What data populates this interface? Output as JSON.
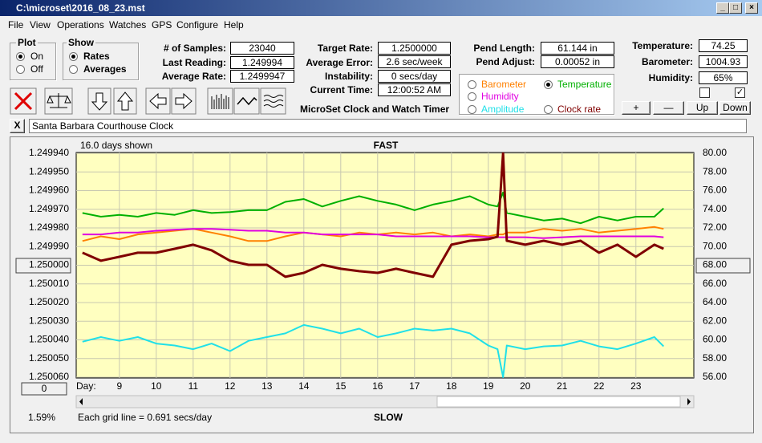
{
  "window": {
    "title": "C:\\microset\\2016_08_23.mst"
  },
  "menu": [
    "File",
    "View",
    "Operations",
    "Watches",
    "GPS",
    "Configure",
    "Help"
  ],
  "plot_group": {
    "title": "Plot",
    "options": [
      "On",
      "Off"
    ]
  },
  "show_group": {
    "title": "Show",
    "options": [
      "Rates",
      "Averages"
    ]
  },
  "fields_left": [
    {
      "label": "# of Samples:",
      "value": "23040"
    },
    {
      "label": "Last Reading:",
      "value": "1.249994"
    },
    {
      "label": "Average Rate:",
      "value": "1.2499947"
    }
  ],
  "fields_mid": [
    {
      "label": "Target Rate:",
      "value": "1.2500000"
    },
    {
      "label": "Average Error:",
      "value": "2.6 sec/week"
    },
    {
      "label": "Instability:",
      "value": "0 secs/day"
    },
    {
      "label": "Current Time:",
      "value": "12:00:52 AM"
    }
  ],
  "fields_pend": [
    {
      "label": "Pend Length:",
      "value": "61.144 in"
    },
    {
      "label": "Pend Adjust:",
      "value": "0.00052 in"
    }
  ],
  "fields_env": [
    {
      "label": "Temperature:",
      "value": "74.25"
    },
    {
      "label": "Barometer:",
      "value": "1004.93"
    },
    {
      "label": "Humidity:",
      "value": "65%"
    }
  ],
  "app_title": "MicroSet Clock and Watch Timer",
  "buttons": [
    "+",
    "—",
    "Up",
    "Down"
  ],
  "close_label": "X",
  "clock_name": "Santa Barbara Courthouse Clock",
  "chart_data": {
    "type": "line",
    "days_shown": "16.0 days shown",
    "top_label": "FAST",
    "bottom_label": "SLOW",
    "x_label": "Day:",
    "footer": "Each grid line = 0.691 secs/day",
    "offset_button": "0",
    "percent": "1.59%",
    "grid": true,
    "xlim": [
      7.83,
      24.57
    ],
    "xticks": [
      9,
      10,
      11,
      12,
      13,
      14,
      15,
      16,
      17,
      18,
      19,
      20,
      21,
      22,
      23
    ],
    "ylim": [
      1.25006,
      1.24994
    ],
    "yticks": [
      {
        "value": 1.24994,
        "label": "1.249940"
      },
      {
        "value": 1.24995,
        "label": "1.249950"
      },
      {
        "value": 1.24996,
        "label": "1.249960"
      },
      {
        "value": 1.24997,
        "label": "1.249970"
      },
      {
        "value": 1.24998,
        "label": "1.249980"
      },
      {
        "value": 1.24999,
        "label": "1.249990"
      },
      {
        "value": 1.25,
        "label": "1.250000"
      },
      {
        "value": 1.25001,
        "label": "1.250010"
      },
      {
        "value": 1.25002,
        "label": "1.250020"
      },
      {
        "value": 1.25003,
        "label": "1.250030"
      },
      {
        "value": 1.25004,
        "label": "1.250040"
      },
      {
        "value": 1.25005,
        "label": "1.250050"
      },
      {
        "value": 1.25006,
        "label": "1.250060"
      }
    ],
    "y2lim": [
      56,
      80
    ],
    "y2ticks": [
      {
        "value": 80,
        "label": "80.00"
      },
      {
        "value": 78,
        "label": "78.00"
      },
      {
        "value": 76,
        "label": "76.00"
      },
      {
        "value": 74,
        "label": "74.00"
      },
      {
        "value": 72,
        "label": "72.00"
      },
      {
        "value": 70,
        "label": "70.00"
      },
      {
        "value": 68,
        "label": "68.00"
      },
      {
        "value": 66,
        "label": "66.00"
      },
      {
        "value": 64,
        "label": "64.00"
      },
      {
        "value": 62,
        "label": "62.00"
      },
      {
        "value": 60,
        "label": "60.00"
      },
      {
        "value": 58,
        "label": "58.00"
      },
      {
        "value": 56,
        "label": "56.00"
      }
    ],
    "x": [
      8,
      8.5,
      9,
      9.5,
      10,
      10.5,
      11,
      11.5,
      12,
      12.5,
      13,
      13.5,
      14,
      14.5,
      15,
      15.5,
      16,
      16.5,
      17,
      17.5,
      18,
      18.5,
      19,
      19.25,
      19.4,
      19.5,
      20,
      20.5,
      21,
      21.5,
      22,
      22.5,
      23,
      23.5,
      23.75
    ],
    "series": [
      {
        "name": "Barometer",
        "color": "#ff8000",
        "axis": "y2",
        "values": [
          70.6,
          71.1,
          70.8,
          71.3,
          71.5,
          71.7,
          71.9,
          71.5,
          71.1,
          70.6,
          70.6,
          71.1,
          71.5,
          71.3,
          71.1,
          71.5,
          71.3,
          71.5,
          71.3,
          71.5,
          71.1,
          71.3,
          71.1,
          71.3,
          71.3,
          71.5,
          71.5,
          71.9,
          71.7,
          71.9,
          71.5,
          71.7,
          71.9,
          72.1,
          71.9
        ]
      },
      {
        "name": "Temperature",
        "color": "#00b000",
        "axis": "y2",
        "values": [
          73.6,
          73.2,
          73.4,
          73.2,
          73.6,
          73.4,
          73.9,
          73.6,
          73.7,
          73.9,
          73.9,
          74.8,
          75.1,
          74.3,
          74.9,
          75.4,
          74.9,
          74.5,
          73.9,
          74.5,
          74.9,
          75.4,
          74.5,
          74.3,
          75.8,
          73.6,
          73.2,
          72.8,
          73.0,
          72.5,
          73.2,
          72.8,
          73.2,
          73.2,
          74.1
        ]
      },
      {
        "name": "Humidity",
        "color": "#e000e0",
        "axis": "y2",
        "values": [
          71.3,
          71.3,
          71.5,
          71.5,
          71.7,
          71.8,
          71.9,
          71.9,
          71.8,
          71.7,
          71.7,
          71.5,
          71.5,
          71.3,
          71.3,
          71.3,
          71.3,
          71.1,
          71.1,
          71.1,
          71.1,
          71.1,
          71.0,
          71.0,
          71.0,
          71.0,
          71.0,
          70.9,
          71.0,
          71.1,
          71.1,
          71.1,
          71.1,
          71.1,
          71.0
        ]
      },
      {
        "name": "Amplitude",
        "color": "#20e0e8",
        "axis": "y2",
        "values": [
          59.8,
          60.3,
          59.9,
          60.3,
          59.6,
          59.4,
          59.0,
          59.6,
          58.8,
          59.9,
          60.3,
          60.7,
          61.6,
          61.2,
          60.7,
          61.2,
          60.3,
          60.7,
          61.2,
          61.0,
          61.2,
          60.7,
          59.4,
          59.0,
          56.0,
          59.4,
          59.0,
          59.3,
          59.4,
          59.9,
          59.3,
          59.0,
          59.6,
          60.3,
          59.3
        ]
      },
      {
        "name": "Clock rate",
        "color": "#800000",
        "values": [
          1.2499933,
          1.2499976,
          1.2499955,
          1.2499933,
          1.2499933,
          1.2499912,
          1.249989,
          1.249992,
          1.2499976,
          1.2499998,
          1.2499998,
          1.2500062,
          1.2500041,
          1.2499998,
          1.2500019,
          1.2500032,
          1.2500041,
          1.2500019,
          1.2500041,
          1.2500062,
          1.249989,
          1.2499869,
          1.249986,
          1.2499847,
          1.24994,
          1.2499869,
          1.249989,
          1.2499869,
          1.249989,
          1.2499869,
          1.2499933,
          1.249989,
          1.2499955,
          1.249989,
          1.2499912
        ]
      }
    ]
  }
}
